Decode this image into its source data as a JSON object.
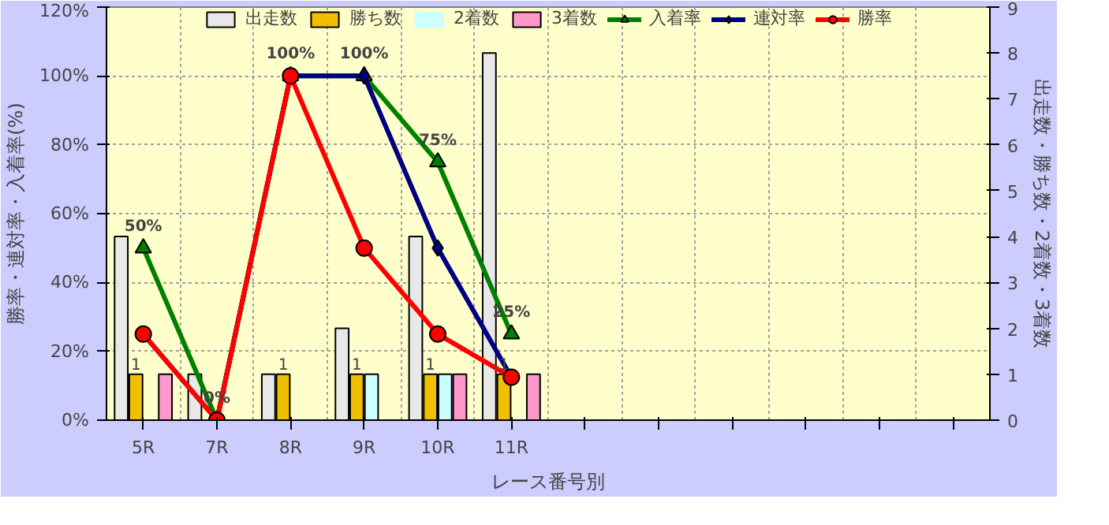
{
  "chart_data": {
    "type": "bar",
    "xlabel": "レース番号別",
    "ylabel": "勝率・連対率・入着率(%)",
    "y2label": "出走数・勝ち数・2着数・3着数",
    "categories": [
      "5R",
      "7R",
      "8R",
      "9R",
      "10R",
      "11R",
      null,
      null,
      null,
      null,
      null,
      null
    ],
    "series": [
      {
        "name": "出走数",
        "color": "#e8e8e8",
        "axis": "y2",
        "values": [
          4,
          1,
          1,
          2,
          4,
          8,
          null,
          null,
          null,
          null,
          null,
          null
        ]
      },
      {
        "name": "勝ち数",
        "color": "#f0c000",
        "axis": "y2",
        "values": [
          1,
          0,
          1,
          1,
          1,
          1,
          null,
          null,
          null,
          null,
          null,
          null
        ],
        "value_labels": [
          "1",
          null,
          "1",
          "1",
          "1",
          "1",
          null,
          null,
          null,
          null,
          null,
          null
        ]
      },
      {
        "name": "2着数",
        "color": "#ccffff",
        "axis": "y2",
        "values": [
          0,
          0,
          0,
          1,
          1,
          0,
          null,
          null,
          null,
          null,
          null,
          null
        ]
      },
      {
        "name": "3着数",
        "color": "#ff99cc",
        "axis": "y2",
        "values": [
          1,
          0,
          0,
          0,
          1,
          1,
          null,
          null,
          null,
          null,
          null,
          null
        ]
      },
      {
        "name": "入着率",
        "type": "line",
        "color": "#008000",
        "marker": "triangle",
        "values": [
          50,
          0,
          100,
          100,
          75,
          25,
          null,
          null,
          null,
          null,
          null,
          null
        ],
        "value_labels": [
          "50%",
          "0%",
          "100%",
          "100%",
          "75%",
          "25%",
          null,
          null,
          null,
          null,
          null,
          null
        ]
      },
      {
        "name": "連対率",
        "type": "line",
        "color": "#000080",
        "marker": "diamond",
        "values": [
          25,
          0,
          100,
          100,
          50,
          12.5,
          null,
          null,
          null,
          null,
          null,
          null
        ]
      },
      {
        "name": "勝率",
        "type": "line",
        "color": "#ff0000",
        "marker": "circle",
        "values": [
          25,
          0,
          100,
          50,
          25,
          12.5,
          null,
          null,
          null,
          null,
          null,
          null
        ]
      }
    ],
    "ylim": [
      0,
      120
    ],
    "yticks": [
      {
        "value": 0,
        "label": "0%"
      },
      {
        "value": 20,
        "label": "20%"
      },
      {
        "value": 40,
        "label": "40%"
      },
      {
        "value": 60,
        "label": "60%"
      },
      {
        "value": 80,
        "label": "80%"
      },
      {
        "value": 100,
        "label": "100%"
      },
      {
        "value": 120,
        "label": "120%"
      }
    ],
    "y2lim": [
      0,
      9
    ],
    "y2ticks": [
      0,
      1,
      2,
      3,
      4,
      5,
      6,
      7,
      8,
      9
    ],
    "grid": true,
    "legend": "top"
  }
}
